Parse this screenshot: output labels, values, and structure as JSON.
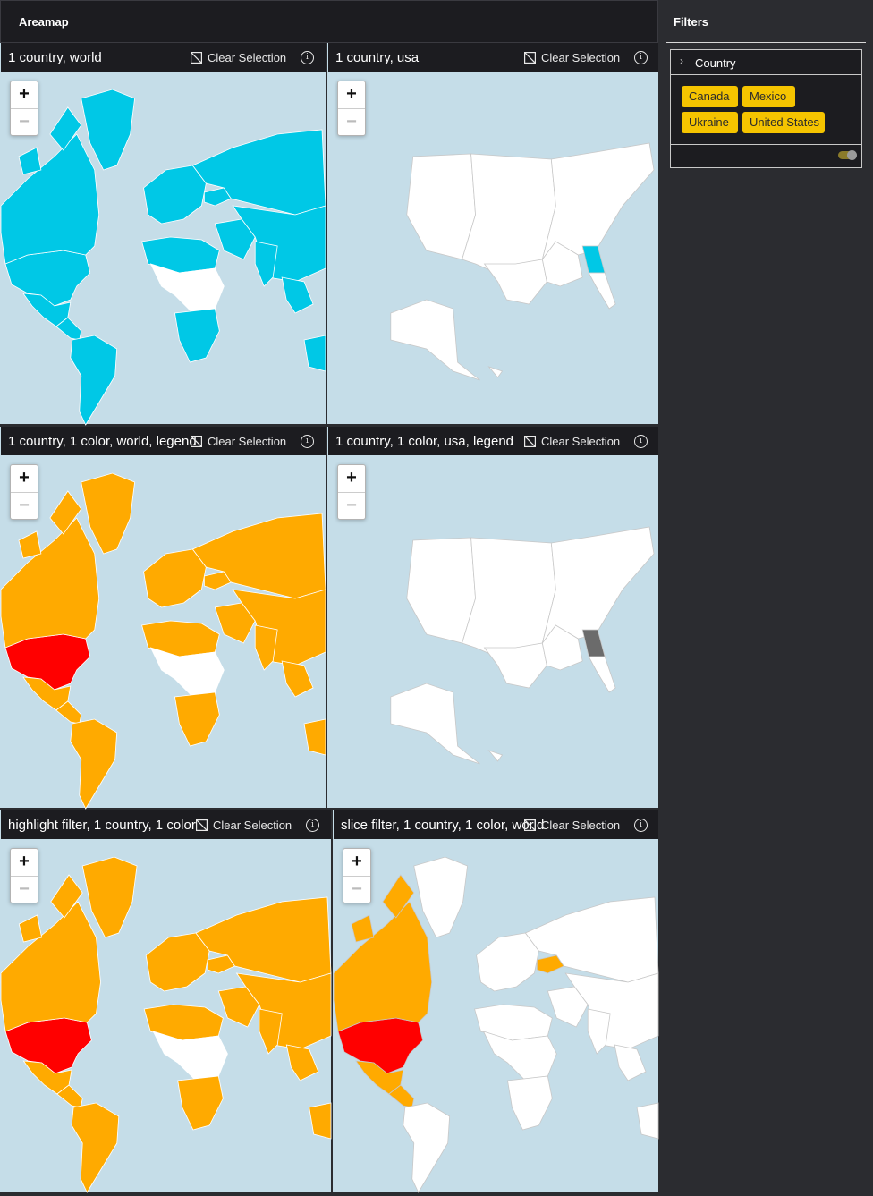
{
  "app": {
    "title": "Areamap"
  },
  "common": {
    "clear_selection": "Clear Selection",
    "info": "i",
    "zoom_in": "+",
    "zoom_out": "−"
  },
  "panels": [
    {
      "title": "1 country, world",
      "map": "world",
      "palette": "cyan-all"
    },
    {
      "title": "1 country, usa",
      "map": "usa",
      "highlight_color": "#00c8e6"
    },
    {
      "title": "1 country, 1 color, world, legend",
      "map": "world",
      "palette": "orange-red"
    },
    {
      "title": "1 country, 1 color, usa, legend",
      "map": "usa",
      "highlight_color": "#6b6b6b"
    },
    {
      "title": "highlight filter, 1 country, 1 color",
      "map": "world",
      "palette": "orange-red"
    },
    {
      "title": "slice filter, 1 country, 1 color, world",
      "map": "world",
      "palette": "slice"
    }
  ],
  "filters": {
    "title": "Filters",
    "country_filter": {
      "label": "Country",
      "chevron": "›",
      "values": [
        "Canada",
        "Mexico",
        "Ukraine",
        "United States"
      ]
    }
  },
  "colors": {
    "ocean": "#c5dde8",
    "cyan": "#00c8e6",
    "orange": "#ffaa00",
    "red": "#ff0000",
    "dark_orange": "#ff7700",
    "gray": "#6b6b6b",
    "white": "#ffffff",
    "chip": "#f5c400"
  }
}
